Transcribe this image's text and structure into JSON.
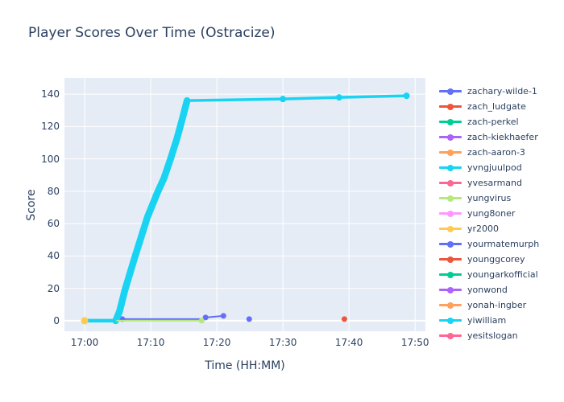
{
  "title": "Player Scores Over Time (Ostracize)",
  "colors": {
    "paper_bg": "#ffffff",
    "plot_bg": "#e5ecf6",
    "grid": "#ffffff",
    "text": "#2a3f5f"
  },
  "axes": {
    "x": {
      "label": "Time (HH:MM)",
      "tick_labels": [
        "17:00",
        "17:10",
        "17:20",
        "17:30",
        "17:40",
        "17:50"
      ],
      "tick_minutes": [
        0,
        10,
        20,
        30,
        40,
        50
      ]
    },
    "y": {
      "label": "Score",
      "ticks": [
        0,
        20,
        40,
        60,
        80,
        100,
        120,
        140
      ]
    }
  },
  "legend": {
    "items": [
      {
        "label": "zachary-wilde-1",
        "color": "#636efa"
      },
      {
        "label": "zach_ludgate",
        "color": "#ef553b"
      },
      {
        "label": "zach-perkel",
        "color": "#00cc96"
      },
      {
        "label": "zach-kiekhaefer",
        "color": "#ab63fa"
      },
      {
        "label": "zach-aaron-3",
        "color": "#ffa15a"
      },
      {
        "label": "yvngjuulpod",
        "color": "#19d3f3"
      },
      {
        "label": "yvesarmand",
        "color": "#ff6692"
      },
      {
        "label": "yungvirus",
        "color": "#b6e880"
      },
      {
        "label": "yung8oner",
        "color": "#ff97ff"
      },
      {
        "label": "yr2000",
        "color": "#fecb52"
      },
      {
        "label": "yourmatemurph",
        "color": "#636efa"
      },
      {
        "label": "younggcorey",
        "color": "#ef553b"
      },
      {
        "label": "youngarkofficial",
        "color": "#00cc96"
      },
      {
        "label": "yonwond",
        "color": "#ab63fa"
      },
      {
        "label": "yonah-ingber",
        "color": "#ffa15a"
      },
      {
        "label": "yiwilliam",
        "color": "#19d3f3"
      },
      {
        "label": "yesitslogan",
        "color": "#ff6692"
      }
    ]
  },
  "chart_data": {
    "type": "line",
    "title": "Player Scores Over Time (Ostracize)",
    "xlabel": "Time (HH:MM)",
    "ylabel": "Score",
    "x_unit": "minutes after 17:00",
    "xlim_minutes": [
      -3.05,
      51.56
    ],
    "ylim": [
      -6.5,
      150
    ],
    "grid": true,
    "legend_position": "right",
    "series": [
      {
        "name": "zachary-wilde-1",
        "color": "#636efa",
        "width": 2,
        "marker_r": 3.5,
        "points": [
          [
            5.7,
            1
          ],
          [
            17.9,
            1
          ],
          [
            18.3,
            2
          ],
          [
            21,
            3
          ]
        ],
        "markers": [
          [
            5.7,
            1
          ],
          [
            18.3,
            2
          ],
          [
            21,
            3
          ]
        ]
      },
      {
        "name": "yvngjuulpod",
        "color": "#19d3f3",
        "width": 3.5,
        "marker_r": 4,
        "points": [
          [
            0,
            0
          ],
          [
            4.7,
            0
          ],
          [
            5.3,
            6
          ],
          [
            6.1,
            19
          ],
          [
            7.5,
            38
          ],
          [
            9.5,
            64
          ],
          [
            11,
            79
          ],
          [
            12,
            88
          ],
          [
            13,
            100
          ],
          [
            14,
            113
          ],
          [
            14.8,
            125
          ],
          [
            15.5,
            136
          ],
          [
            30,
            137
          ],
          [
            38.5,
            138
          ],
          [
            48.7,
            139
          ]
        ],
        "markers": [
          [
            15.5,
            136
          ],
          [
            30,
            137
          ],
          [
            38.5,
            138
          ],
          [
            48.7,
            139
          ]
        ],
        "segments": [
          {
            "t0": 0,
            "t1": 4.7,
            "w": 4.5
          },
          {
            "t0": 4.7,
            "t1": 15.5,
            "w": 8.5
          }
        ]
      },
      {
        "name": "yungvirus",
        "color": "#b6e880",
        "width": 2,
        "marker_r": 3.5,
        "points": [
          [
            4.9,
            0
          ],
          [
            17.7,
            0
          ]
        ],
        "markers": [
          [
            17.7,
            0
          ]
        ]
      },
      {
        "name": "yr2000",
        "color": "#fecb52",
        "width": 2,
        "marker_r": 4.5,
        "points": [
          [
            0,
            0
          ]
        ],
        "markers": [
          [
            0,
            0
          ]
        ]
      },
      {
        "name": "yourmatemurph",
        "color": "#636efa",
        "width": 2,
        "marker_r": 3.5,
        "points": [
          [
            24.9,
            1
          ]
        ],
        "markers": [
          [
            24.9,
            1
          ]
        ]
      },
      {
        "name": "younggcorey",
        "color": "#ef553b",
        "width": 2,
        "marker_r": 3.5,
        "points": [
          [
            39.3,
            1
          ]
        ],
        "markers": [
          [
            39.3,
            1
          ]
        ]
      }
    ]
  }
}
